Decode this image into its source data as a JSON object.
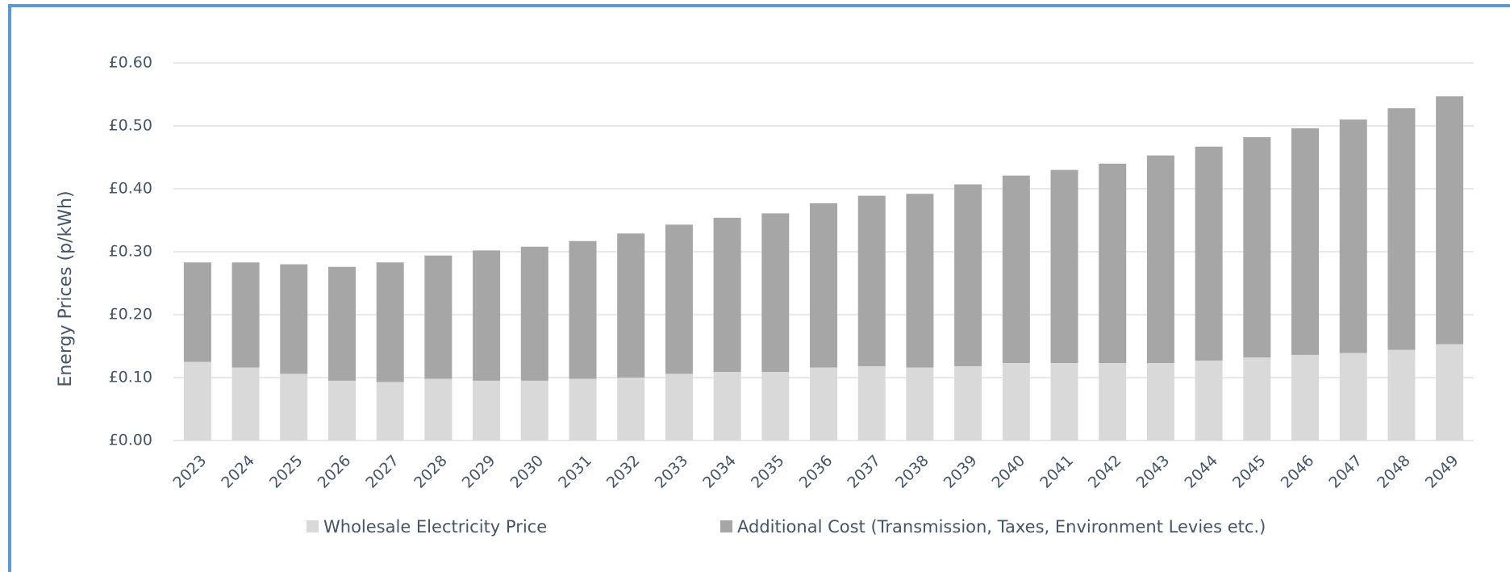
{
  "chart_data": {
    "type": "stacked_bar",
    "y_label": "Energy Prices (p/kWh)",
    "categories": [
      "2023",
      "2024",
      "2025",
      "2026",
      "2027",
      "2028",
      "2029",
      "2030",
      "2031",
      "2032",
      "2033",
      "2034",
      "2035",
      "2036",
      "2037",
      "2038",
      "2039",
      "2040",
      "2041",
      "2042",
      "2043",
      "2044",
      "2045",
      "2046",
      "2047",
      "2048",
      "2049"
    ],
    "series": [
      {
        "name": "Wholesale Electricity Price",
        "color": "#d9d9d9",
        "values": [
          0.125,
          0.116,
          0.106,
          0.095,
          0.093,
          0.098,
          0.095,
          0.095,
          0.098,
          0.1,
          0.106,
          0.109,
          0.109,
          0.116,
          0.118,
          0.116,
          0.118,
          0.123,
          0.123,
          0.123,
          0.123,
          0.127,
          0.132,
          0.136,
          0.139,
          0.144,
          0.153
        ]
      },
      {
        "name": "Additional Cost (Transmission, Taxes, Environment Levies etc.)",
        "color": "#a6a6a6",
        "values": [
          0.158,
          0.167,
          0.174,
          0.181,
          0.19,
          0.196,
          0.207,
          0.213,
          0.219,
          0.229,
          0.237,
          0.245,
          0.252,
          0.261,
          0.271,
          0.276,
          0.289,
          0.298,
          0.307,
          0.317,
          0.33,
          0.34,
          0.35,
          0.36,
          0.371,
          0.384,
          0.394
        ]
      }
    ],
    "ylim": [
      0,
      0.6
    ],
    "yticks": [
      {
        "value": 0,
        "label": "£0.00"
      },
      {
        "value": 0.1,
        "label": "£0.10"
      },
      {
        "value": 0.2,
        "label": "£0.20"
      },
      {
        "value": 0.3,
        "label": "£0.30"
      },
      {
        "value": 0.4,
        "label": "£0.40"
      },
      {
        "value": 0.5,
        "label": "£0.50"
      },
      {
        "value": 0.6,
        "label": "£0.60"
      }
    ],
    "grid": true,
    "legend": "bottom"
  }
}
